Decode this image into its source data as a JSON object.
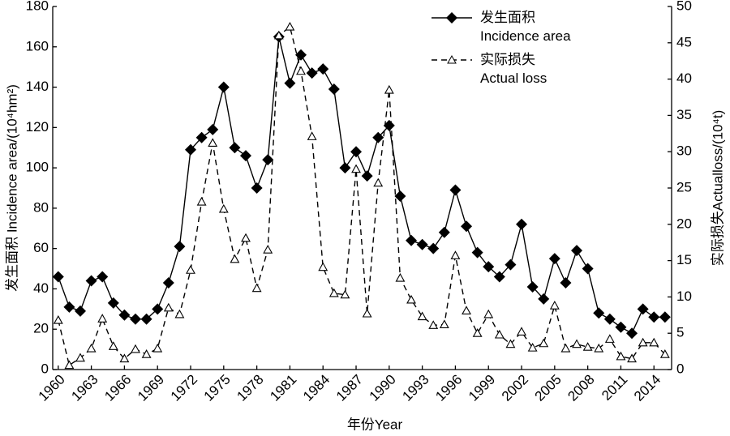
{
  "chart_data": {
    "type": "line",
    "x_label": "年份Year",
    "y_label": "发生面积 Incidence area/(10⁴hm²)",
    "y2_label": "实际损失Actualloss/(10⁴t)",
    "x": [
      1960,
      1961,
      1962,
      1963,
      1964,
      1965,
      1966,
      1967,
      1968,
      1969,
      1970,
      1971,
      1972,
      1973,
      1974,
      1975,
      1976,
      1977,
      1978,
      1979,
      1980,
      1981,
      1982,
      1983,
      1984,
      1985,
      1986,
      1987,
      1988,
      1989,
      1990,
      1991,
      1992,
      1993,
      1994,
      1995,
      1996,
      1997,
      1998,
      1999,
      2000,
      2001,
      2002,
      2003,
      2004,
      2005,
      2006,
      2007,
      2008,
      2009,
      2010,
      2011,
      2012,
      2013,
      2014,
      2015
    ],
    "xlim": [
      1959.5,
      2015.6
    ],
    "xticks": [
      1960,
      1963,
      1966,
      1969,
      1972,
      1975,
      1978,
      1981,
      1984,
      1987,
      1990,
      1993,
      1996,
      1999,
      2002,
      2005,
      2008,
      2011,
      2014
    ],
    "ylim": [
      0,
      180
    ],
    "yticks": [
      0,
      20,
      40,
      60,
      80,
      100,
      120,
      140,
      160,
      180
    ],
    "y2lim": [
      0,
      50
    ],
    "y2ticks": [
      0,
      5,
      10,
      15,
      20,
      25,
      30,
      35,
      40,
      45,
      50
    ],
    "legend": "upper right",
    "series": [
      {
        "name": "发生面积\nIncidence area",
        "color": "#000000",
        "marker": "diamond",
        "dash": false,
        "values": [
          46,
          31,
          29,
          44,
          46,
          33,
          27,
          25,
          25,
          30,
          43,
          61,
          109,
          115,
          119,
          140,
          110,
          106,
          90,
          104,
          165,
          142,
          156,
          147,
          149,
          139,
          100,
          108,
          96,
          115,
          121,
          86,
          64,
          62,
          60,
          68,
          89,
          71,
          58,
          51,
          46,
          52,
          72,
          41,
          35,
          55,
          43,
          59,
          50,
          28,
          25,
          21,
          18,
          30,
          26,
          26
        ]
      },
      {
        "name": "实际损失\nActual loss",
        "color": "#000000",
        "marker": "triangle",
        "dash": true,
        "axis": "y2",
        "values": [
          6.8,
          0.6,
          1.6,
          2.9,
          7.0,
          3.2,
          1.5,
          2.8,
          2.1,
          2.9,
          8.5,
          7.6,
          13.7,
          23.1,
          31.2,
          22.1,
          15.2,
          18.1,
          11.2,
          16.5,
          46.0,
          47.2,
          41.1,
          32.1,
          14.1,
          10.5,
          10.3,
          27.6,
          7.7,
          25.7,
          38.5,
          12.6,
          9.6,
          7.3,
          6.1,
          6.2,
          15.7,
          8.1,
          5.0,
          7.6,
          4.8,
          3.5,
          5.2,
          3.0,
          3.6,
          8.8,
          2.9,
          3.5,
          3.1,
          2.9,
          4.2,
          1.8,
          1.5,
          3.7,
          3.7,
          2.1
        ]
      }
    ]
  }
}
